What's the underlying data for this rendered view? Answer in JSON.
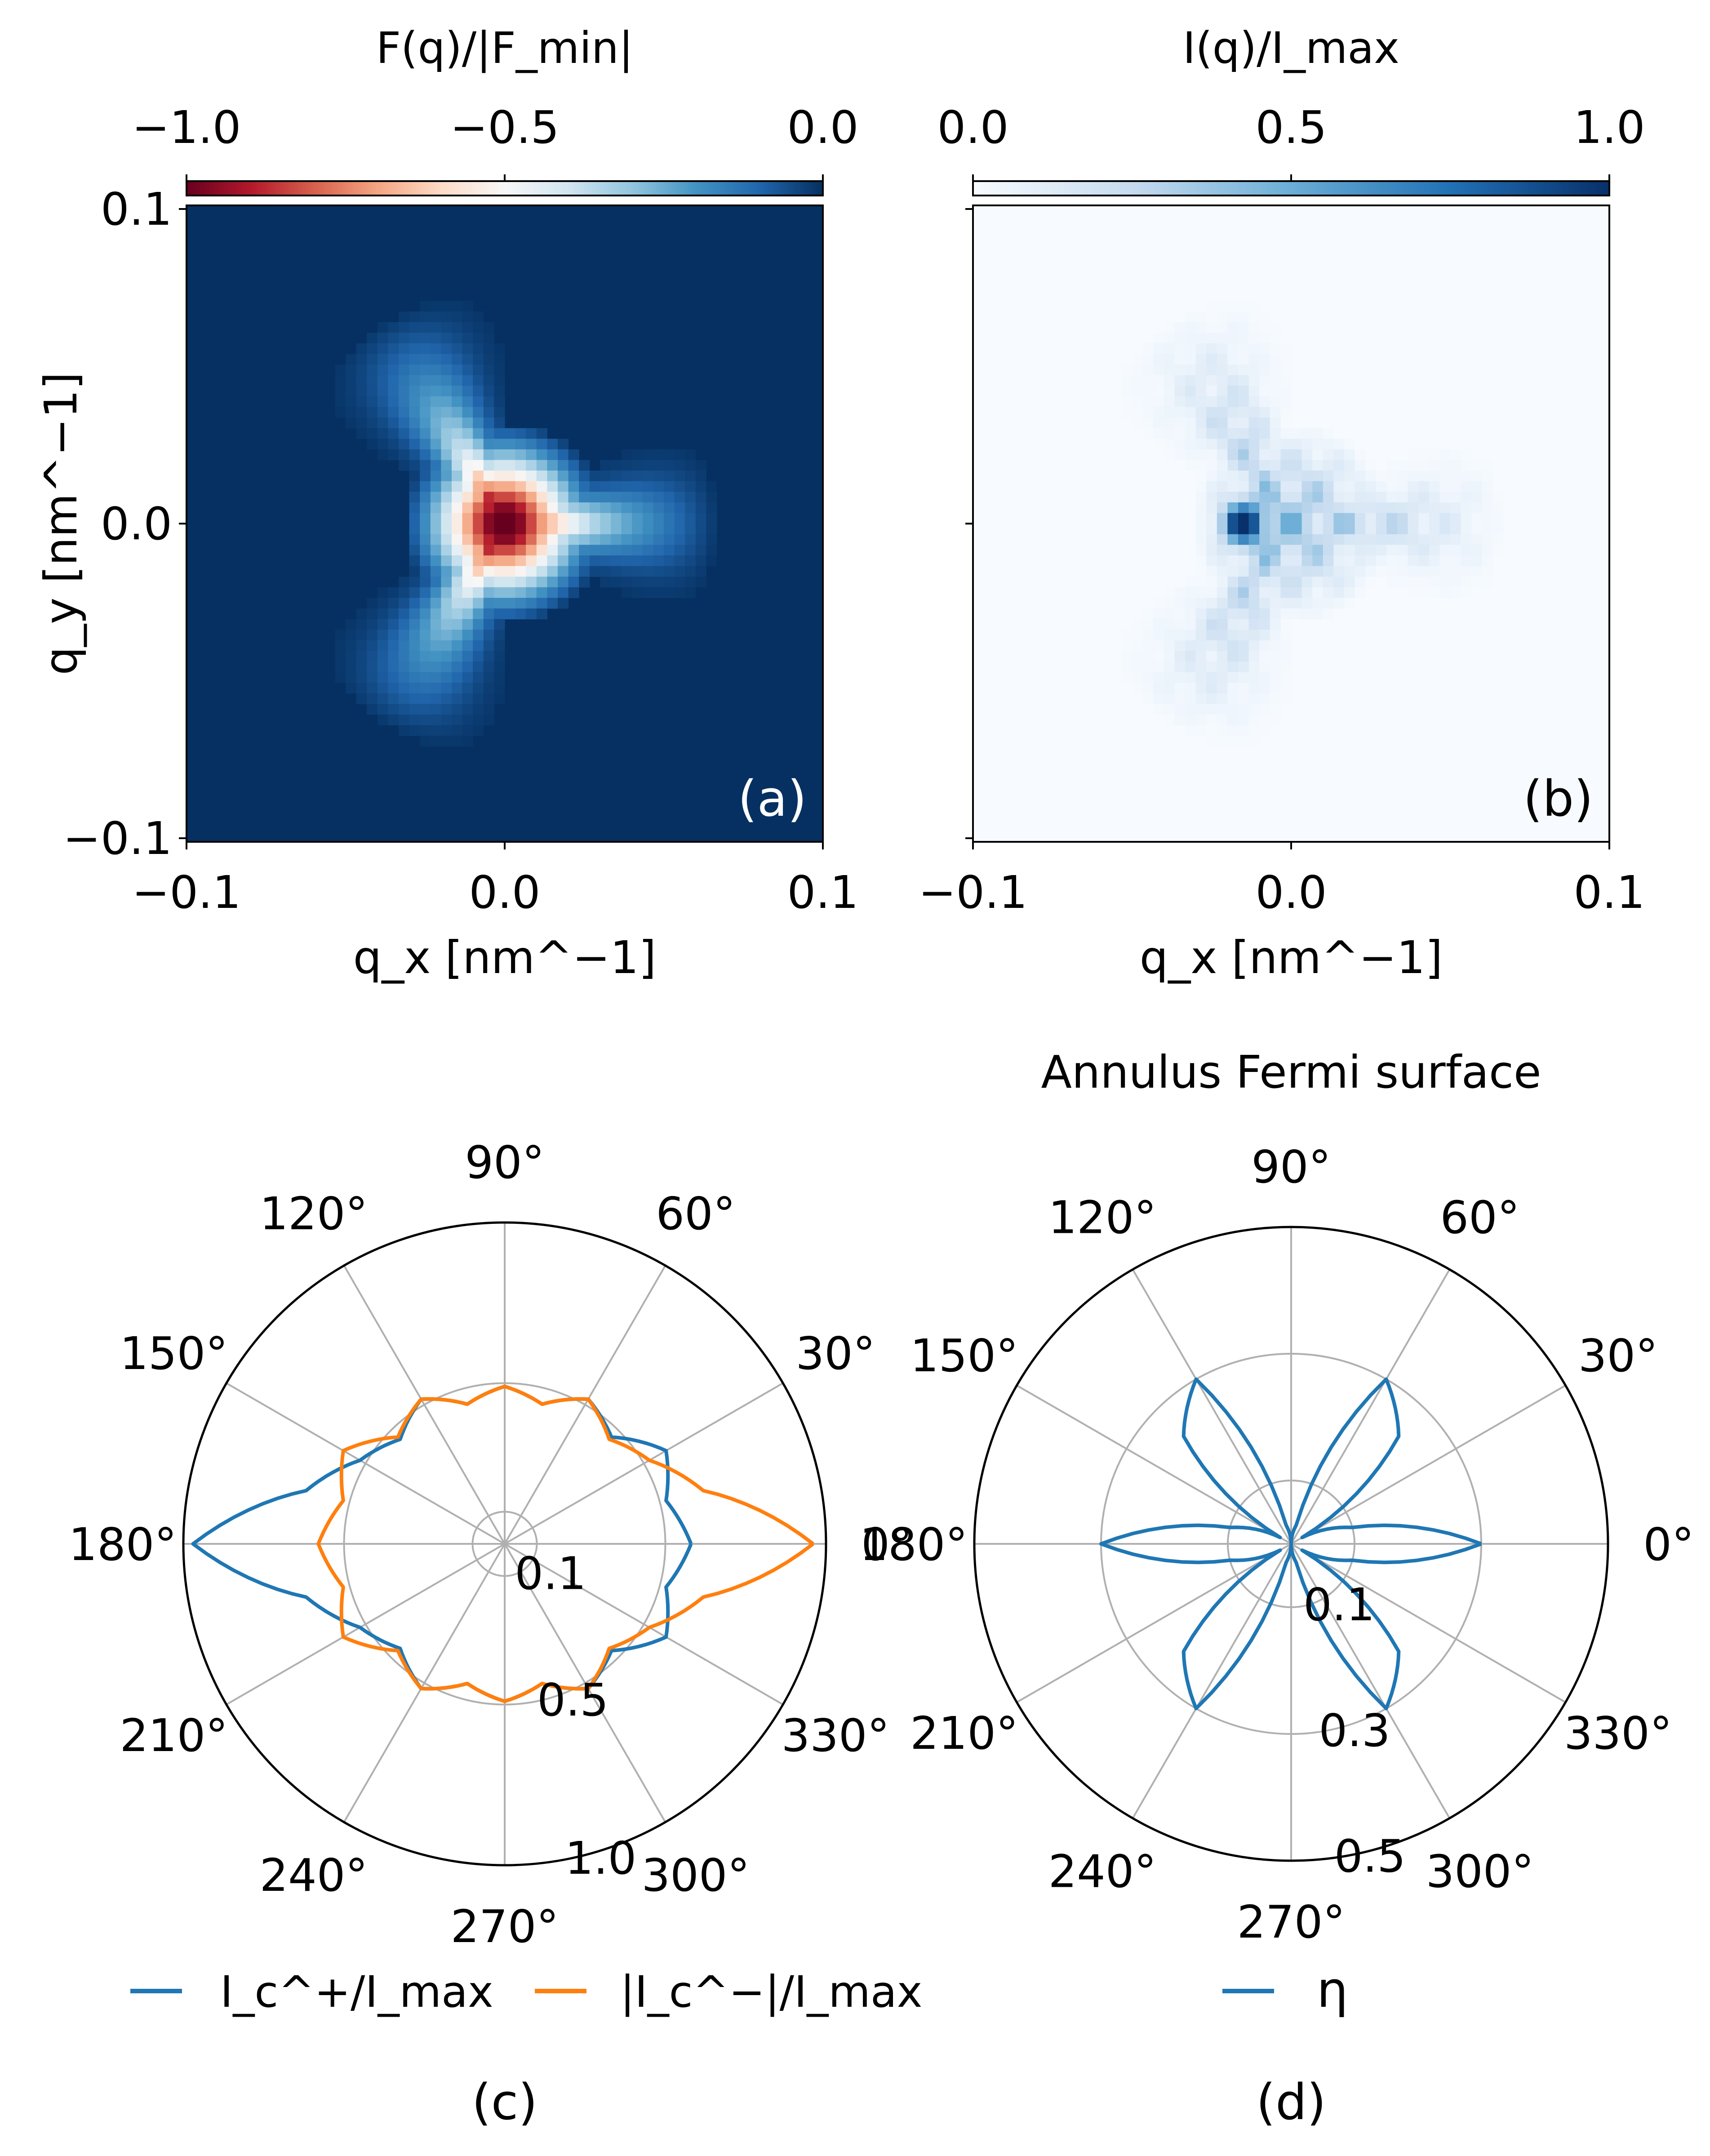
{
  "panels": {
    "a": {
      "label": "(a)",
      "cbar_title": "F(q)/|F_min|",
      "cbar_ticks": [
        "−1.0",
        "−0.5",
        "0.0"
      ]
    },
    "b": {
      "label": "(b)",
      "cbar_title": "I(q)/I_max",
      "cbar_ticks": [
        "0.0",
        "0.5",
        "1.0"
      ]
    },
    "c": {
      "label": "(c)",
      "legend": [
        "I_c^+/I_max",
        "|I_c^−|/I_max"
      ]
    },
    "d": {
      "label": "(d)",
      "title": "Annulus Fermi surface",
      "legend": [
        "η"
      ]
    }
  },
  "colors": {
    "blue": "#1f77b4",
    "orange": "#ff7f0e",
    "grid": "#b0b0b0"
  },
  "chart_data": [
    {
      "type": "heatmap",
      "panel": "a",
      "title": "",
      "xlabel": "q_x [nm^−1]",
      "ylabel": "q_y [nm^−1]",
      "xlim": [
        -0.1,
        0.1
      ],
      "ylim": [
        -0.1,
        0.1
      ],
      "xticks": [
        "−0.1",
        "0.0",
        "0.1"
      ],
      "yticks": [
        "0.1",
        "0.0",
        "−0.1"
      ],
      "colormap": "RdBu",
      "clim": [
        -1.0,
        0.0
      ],
      "description_values": {
        "min_at": [
          0.0,
          0.0
        ],
        "min_value": -1.0,
        "background": 0.0
      }
    },
    {
      "type": "heatmap",
      "panel": "b",
      "title": "",
      "xlabel": "q_x [nm^−1]",
      "ylabel": "",
      "xlim": [
        -0.1,
        0.1
      ],
      "ylim": [
        -0.1,
        0.1
      ],
      "xticks": [
        "−0.1",
        "0.0",
        "0.1"
      ],
      "colormap": "Blues",
      "clim": [
        0.0,
        1.0
      ],
      "description_values": {
        "max_at": [
          -0.015,
          0.0
        ],
        "max_value": 1.0,
        "background": 0.0
      }
    },
    {
      "type": "line",
      "panel": "c",
      "projection": "polar",
      "theta_ticks": [
        "0°",
        "30°",
        "60°",
        "90°",
        "120°",
        "150°",
        "180°",
        "210°",
        "240°",
        "270°",
        "300°",
        "330°"
      ],
      "r_ticks": [
        0.1,
        0.5,
        1.0
      ],
      "r_tick_labels": [
        "0.1",
        "0.5",
        "1.0"
      ],
      "rlim": [
        0,
        1.0
      ],
      "theta_deg": [
        0,
        15,
        30,
        45,
        60,
        75,
        90,
        105,
        120,
        135,
        150,
        165,
        180,
        195,
        210,
        225,
        240,
        255,
        270,
        285,
        300,
        315,
        330,
        345
      ],
      "series": [
        {
          "name": "I_c^+/I_max",
          "color": "#1f77b4",
          "r": [
            0.58,
            0.52,
            0.58,
            0.47,
            0.52,
            0.45,
            0.49,
            0.45,
            0.52,
            0.46,
            0.52,
            0.64,
            0.97,
            0.64,
            0.52,
            0.46,
            0.52,
            0.45,
            0.49,
            0.45,
            0.52,
            0.47,
            0.58,
            0.52
          ]
        },
        {
          "name": "|I_c^−|/I_max",
          "color": "#ff7f0e",
          "r": [
            0.96,
            0.64,
            0.52,
            0.46,
            0.52,
            0.45,
            0.49,
            0.45,
            0.52,
            0.47,
            0.58,
            0.52,
            0.58,
            0.52,
            0.58,
            0.47,
            0.52,
            0.45,
            0.49,
            0.45,
            0.52,
            0.46,
            0.52,
            0.64
          ]
        }
      ]
    },
    {
      "type": "line",
      "panel": "d",
      "projection": "polar",
      "title": "Annulus Fermi surface",
      "theta_ticks": [
        "0°",
        "30°",
        "60°",
        "90°",
        "120°",
        "150°",
        "180°",
        "210°",
        "240°",
        "270°",
        "300°",
        "330°"
      ],
      "r_ticks": [
        0.1,
        0.3,
        0.5
      ],
      "r_tick_labels": [
        "0.1",
        "0.3",
        "0.5"
      ],
      "rlim": [
        0,
        0.5
      ],
      "theta_deg": [
        0,
        15,
        30,
        45,
        60,
        75,
        90,
        105,
        120,
        135,
        150,
        165,
        180,
        195,
        210,
        225,
        240,
        255,
        270,
        285,
        300,
        315,
        330,
        345
      ],
      "series": [
        {
          "name": "η",
          "color": "#1f77b4",
          "r": [
            0.3,
            0.1,
            0.02,
            0.24,
            0.3,
            0.03,
            0.0,
            0.03,
            0.3,
            0.24,
            0.02,
            0.1,
            0.3,
            0.1,
            0.02,
            0.24,
            0.3,
            0.03,
            0.0,
            0.03,
            0.3,
            0.24,
            0.02,
            0.1
          ]
        }
      ]
    }
  ]
}
